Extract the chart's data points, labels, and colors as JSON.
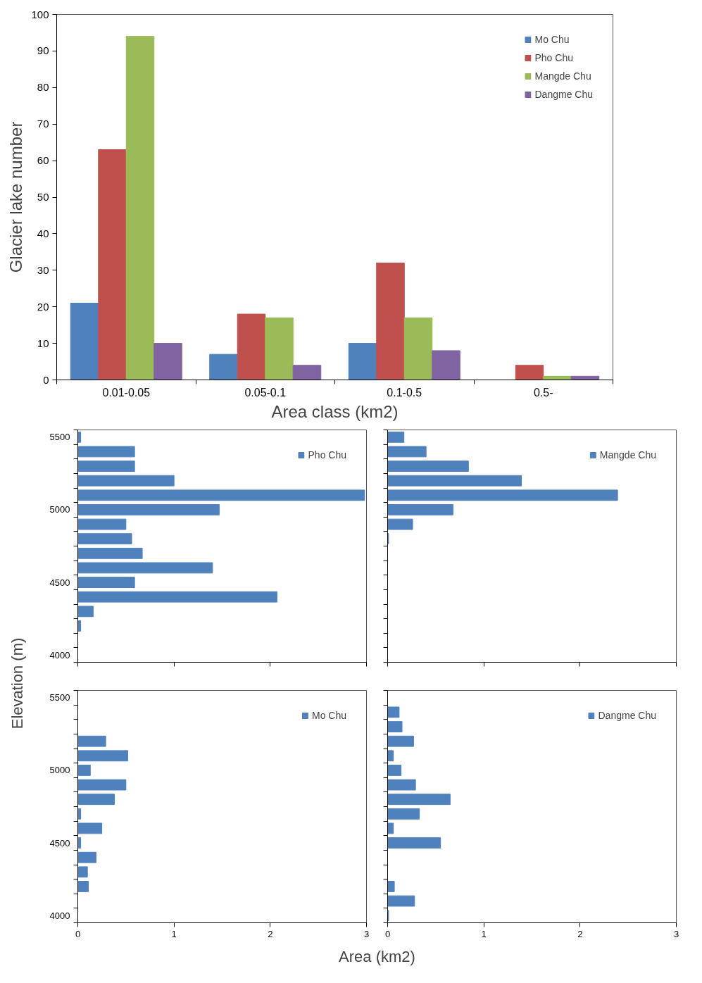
{
  "chart_data": [
    {
      "type": "bar",
      "xlabel": "Area class (km2)",
      "ylabel": "Glacier lake number",
      "categories": [
        "0.01-0.05",
        "0.05-0.1",
        "0.1-0.5",
        "0.5-"
      ],
      "ylim": [
        0,
        100
      ],
      "yticks": [
        0,
        10,
        20,
        30,
        40,
        50,
        60,
        70,
        80,
        90,
        100
      ],
      "grid": false,
      "legend": "top right",
      "series": [
        {
          "name": "Mo Chu",
          "color": "#4f81bd",
          "values": [
            21,
            7,
            10,
            0
          ]
        },
        {
          "name": "Pho Chu",
          "color": "#c0504d",
          "values": [
            63,
            18,
            32,
            4
          ]
        },
        {
          "name": "Mangde Chu",
          "color": "#9bbb59",
          "values": [
            94,
            17,
            17,
            1
          ]
        },
        {
          "name": "Dangme Chu",
          "color": "#8064a2",
          "values": [
            10,
            4,
            8,
            1
          ]
        }
      ]
    },
    {
      "type": "bar",
      "orientation": "horizontal",
      "ylabel": "Elevation (m)",
      "categories": [
        "5500",
        null,
        null,
        null,
        null,
        "5000",
        null,
        null,
        null,
        null,
        "4500",
        null,
        null,
        null,
        null,
        "4000"
      ],
      "xlim": [
        0,
        3
      ],
      "xticks": [
        0,
        1,
        2,
        3
      ],
      "tick_labels": "y",
      "legend": "top right",
      "series": [
        {
          "name": "Pho Chu",
          "color": "#4f81bd",
          "values": [
            0.03,
            0.59,
            0.59,
            1.0,
            2.98,
            1.47,
            0.5,
            0.56,
            0.67,
            1.4,
            0.59,
            2.07,
            0.16,
            0.03,
            null,
            null
          ]
        }
      ]
    },
    {
      "type": "bar",
      "orientation": "horizontal",
      "categories": [
        "5500",
        null,
        null,
        null,
        null,
        "5000",
        null,
        null,
        null,
        null,
        "4500",
        null,
        null,
        null,
        null,
        "4000"
      ],
      "xlim": [
        0,
        3
      ],
      "xticks": [
        0,
        1,
        2,
        3
      ],
      "tick_labels": false,
      "legend": "top right",
      "series": [
        {
          "name": "Mangde Chu",
          "color": "#4f81bd",
          "values": [
            0.17,
            0.4,
            0.84,
            1.39,
            2.39,
            0.68,
            0.26,
            0.01,
            null,
            null,
            null,
            null,
            null,
            null,
            null,
            null
          ]
        }
      ]
    },
    {
      "type": "bar",
      "orientation": "horizontal",
      "xlabel": "Area (km2)",
      "categories": [
        "5500",
        null,
        null,
        null,
        null,
        "5000",
        null,
        null,
        null,
        null,
        "4500",
        null,
        null,
        null,
        null,
        "4000"
      ],
      "xlim": [
        0,
        3
      ],
      "xticks": [
        0,
        1,
        2,
        3
      ],
      "legend": "top right",
      "series": [
        {
          "name": "Mo Chu",
          "color": "#4f81bd",
          "values": [
            null,
            null,
            null,
            0.29,
            0.52,
            0.13,
            0.5,
            0.38,
            0.03,
            0.25,
            0.03,
            0.19,
            0.1,
            0.11,
            null,
            null
          ]
        }
      ]
    },
    {
      "type": "bar",
      "orientation": "horizontal",
      "categories": [
        "5500",
        null,
        null,
        null,
        null,
        "5000",
        null,
        null,
        null,
        null,
        "4500",
        null,
        null,
        null,
        null,
        "4000"
      ],
      "xlim": [
        0,
        3
      ],
      "xticks": [
        0,
        1,
        2,
        3
      ],
      "tick_labels": "x",
      "legend": "top right",
      "series": [
        {
          "name": "Dangme Chu",
          "color": "#4f81bd",
          "values": [
            null,
            0.12,
            0.15,
            0.27,
            0.06,
            0.14,
            0.29,
            0.65,
            0.33,
            0.06,
            0.55,
            null,
            null,
            0.07,
            0.28,
            0.01
          ]
        }
      ]
    }
  ]
}
